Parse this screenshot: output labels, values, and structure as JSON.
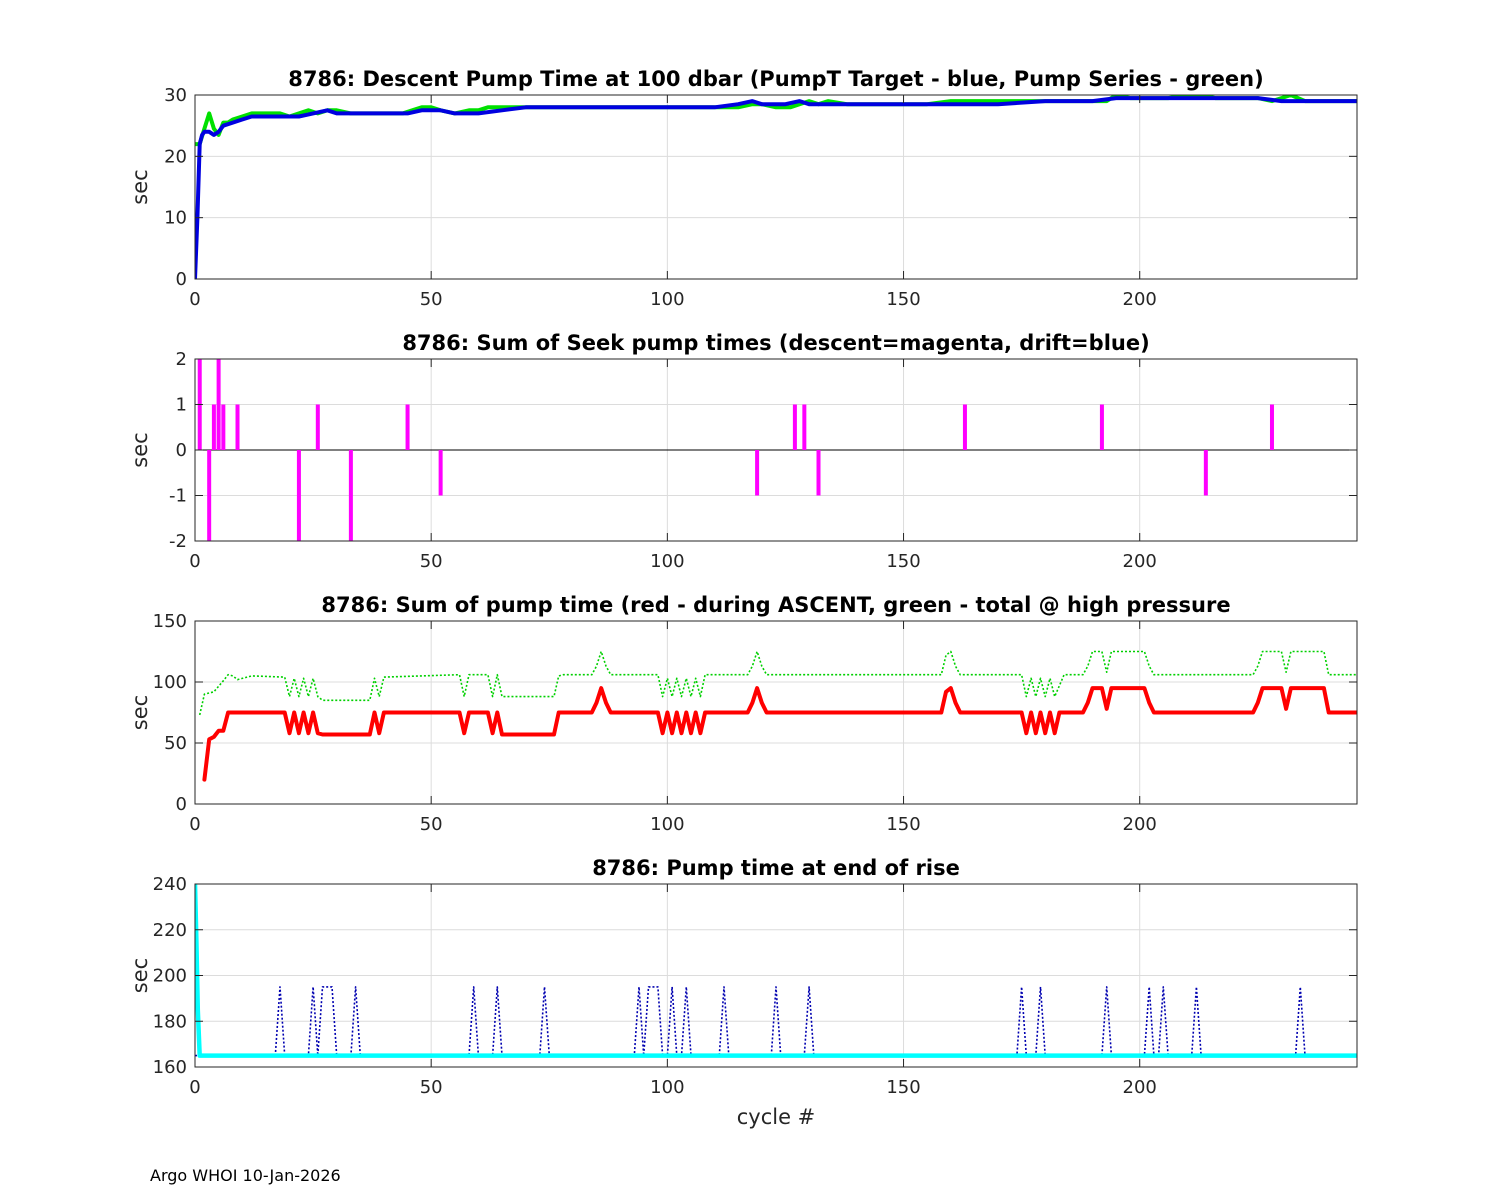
{
  "footer": "Argo WHOI 10-Jan-2026",
  "chart_data": [
    {
      "type": "line",
      "title": "8786: Descent Pump Time at 100 dbar (PumpT Target - blue, Pump Series - green)",
      "ylabel": "sec",
      "xlabel": "",
      "xlim": [
        0,
        246
      ],
      "ylim": [
        0,
        30
      ],
      "xticks": [
        0,
        50,
        100,
        150,
        200
      ],
      "yticks": [
        0,
        10,
        20,
        30
      ],
      "grid": true,
      "series": [
        {
          "name": "Pump Series",
          "color": "#00e000",
          "width": 4,
          "dash": "",
          "x": [
            0,
            1,
            2,
            3,
            4,
            5,
            6,
            7,
            8,
            10,
            12,
            15,
            18,
            20,
            22,
            24,
            26,
            28,
            30,
            33,
            36,
            40,
            44,
            46,
            48,
            50,
            52,
            55,
            58,
            60,
            62,
            65,
            70,
            75,
            80,
            85,
            90,
            95,
            100,
            105,
            110,
            115,
            118,
            120,
            123,
            126,
            128,
            130,
            132,
            134,
            138,
            142,
            146,
            150,
            155,
            160,
            165,
            170,
            175,
            180,
            185,
            190,
            193,
            195,
            198,
            200,
            203,
            206,
            210,
            213,
            216,
            220,
            225,
            228,
            230,
            232,
            235,
            240,
            246
          ],
          "y": [
            22,
            22,
            24.5,
            27,
            24.5,
            23.5,
            25.5,
            25.5,
            26,
            26.5,
            27,
            27,
            27,
            26.5,
            27,
            27.5,
            27,
            27.5,
            27.5,
            27,
            27,
            27,
            27,
            27.5,
            28,
            28,
            27.5,
            27,
            27.5,
            27.5,
            28,
            28,
            28,
            28,
            28,
            28,
            28,
            28,
            28,
            28,
            28,
            28,
            28.5,
            28.5,
            28,
            28,
            28.5,
            29,
            28.5,
            29,
            28.5,
            28.5,
            28.5,
            28.5,
            28.5,
            29,
            29,
            29,
            29,
            29,
            29,
            29,
            29,
            30,
            29.5,
            29.5,
            29.5,
            29.5,
            30,
            30,
            29.5,
            29.5,
            29.5,
            29,
            29.5,
            30,
            29,
            29,
            29
          ]
        },
        {
          "name": "PumpT Target",
          "color": "#0000e0",
          "width": 4,
          "dash": "",
          "x": [
            0,
            0.5,
            1,
            1.5,
            2,
            3,
            4,
            5,
            6,
            8,
            10,
            12,
            15,
            18,
            20,
            22,
            25,
            28,
            30,
            35,
            40,
            45,
            48,
            50,
            52,
            55,
            60,
            65,
            70,
            75,
            80,
            90,
            100,
            110,
            115,
            118,
            120,
            125,
            128,
            130,
            132,
            135,
            140,
            145,
            150,
            160,
            170,
            180,
            190,
            195,
            200,
            205,
            210,
            215,
            220,
            225,
            230,
            235,
            240,
            246
          ],
          "y": [
            0,
            10,
            22,
            23.5,
            24,
            24,
            23.5,
            24,
            25,
            25.5,
            26,
            26.5,
            26.5,
            26.5,
            26.5,
            26.5,
            27,
            27.5,
            27,
            27,
            27,
            27,
            27.5,
            27.5,
            27.5,
            27,
            27,
            27.5,
            28,
            28,
            28,
            28,
            28,
            28,
            28.5,
            29,
            28.5,
            28.5,
            29,
            28.5,
            28.5,
            28.5,
            28.5,
            28.5,
            28.5,
            28.5,
            28.5,
            29,
            29,
            29.5,
            29.5,
            29.5,
            29.5,
            29.5,
            29.5,
            29.5,
            29,
            29,
            29,
            29
          ]
        }
      ]
    },
    {
      "type": "bar",
      "title": "8786: Sum of Seek pump times (descent=magenta, drift=blue)",
      "ylabel": "sec",
      "xlabel": "",
      "xlim": [
        0,
        246
      ],
      "ylim": [
        -2,
        2
      ],
      "xticks": [
        0,
        50,
        100,
        150,
        200
      ],
      "yticks": [
        -2,
        -1,
        0,
        1,
        2
      ],
      "grid": true,
      "bar_color": "#ff00ff",
      "x": [
        1,
        3,
        4,
        5,
        6,
        9,
        22,
        26,
        33,
        45,
        52,
        119,
        127,
        129,
        132,
        163,
        192,
        214,
        228
      ],
      "values": [
        2,
        -2,
        1,
        2,
        1,
        1,
        -2,
        1,
        -2,
        1,
        -1,
        -1,
        1,
        1,
        -1,
        1,
        1,
        -1,
        1
      ]
    },
    {
      "type": "line",
      "title": "8786: Sum of pump time (red - during ASCENT, green - total @ high pressure",
      "ylabel": "sec",
      "xlabel": "",
      "xlim": [
        0,
        246
      ],
      "ylim": [
        0,
        150
      ],
      "xticks": [
        0,
        50,
        100,
        150,
        200
      ],
      "yticks": [
        0,
        50,
        100,
        150
      ],
      "grid": true,
      "series": [
        {
          "name": "total @ high pressure",
          "color": "#00d000",
          "width": 1.6,
          "dash": "2,2",
          "x": [
            1,
            2,
            4,
            6,
            7,
            8,
            9,
            12,
            19,
            20,
            21,
            22,
            23,
            24,
            25,
            26,
            27,
            33,
            37,
            38,
            39,
            40,
            48,
            56,
            57,
            58,
            59,
            62,
            63,
            64,
            65,
            70,
            76,
            77,
            78,
            84,
            85,
            86,
            87,
            88,
            98,
            99,
            100,
            101,
            102,
            103,
            104,
            105,
            106,
            107,
            108,
            117,
            118,
            119,
            120,
            121,
            158,
            159,
            160,
            161,
            162,
            175,
            176,
            177,
            178,
            179,
            180,
            181,
            182,
            184,
            188,
            189,
            190,
            191,
            192,
            193,
            194,
            195,
            201,
            202,
            203,
            224,
            225,
            226,
            227,
            228,
            229,
            230,
            231,
            232,
            233,
            238,
            239,
            240,
            246
          ],
          "y": [
            73,
            90,
            92,
            101,
            106,
            105,
            102,
            105,
            104,
            88,
            103,
            88,
            103,
            88,
            103,
            88,
            85,
            85,
            85,
            103,
            88,
            104,
            105,
            106,
            88,
            106,
            106,
            106,
            88,
            106,
            88,
            88,
            88,
            105,
            106,
            106,
            113,
            125,
            113,
            106,
            106,
            88,
            103,
            88,
            103,
            88,
            103,
            88,
            103,
            88,
            106,
            106,
            113,
            125,
            113,
            106,
            106,
            122,
            125,
            113,
            106,
            106,
            88,
            103,
            88,
            103,
            88,
            103,
            88,
            106,
            106,
            113,
            125,
            125,
            125,
            108,
            125,
            125,
            125,
            113,
            106,
            106,
            113,
            125,
            125,
            125,
            125,
            125,
            108,
            125,
            125,
            125,
            125,
            106,
            106
          ]
        },
        {
          "name": "during ASCENT",
          "color": "#ff0000",
          "width": 4,
          "dash": "",
          "x": [
            2,
            3,
            4,
            5,
            6,
            7,
            19,
            20,
            21,
            22,
            23,
            24,
            25,
            26,
            27,
            37,
            38,
            39,
            40,
            56,
            57,
            58,
            62,
            63,
            64,
            65,
            76,
            77,
            78,
            84,
            85,
            86,
            87,
            88,
            98,
            99,
            100,
            101,
            102,
            103,
            104,
            105,
            106,
            107,
            108,
            117,
            118,
            119,
            120,
            121,
            158,
            159,
            160,
            161,
            162,
            175,
            176,
            177,
            178,
            179,
            180,
            181,
            182,
            183,
            188,
            189,
            190,
            191,
            192,
            193,
            194,
            195,
            201,
            202,
            203,
            224,
            225,
            226,
            227,
            228,
            229,
            230,
            231,
            232,
            233,
            238,
            239,
            240,
            246
          ],
          "y": [
            20,
            53,
            55,
            60,
            60,
            75,
            75,
            58,
            75,
            58,
            75,
            58,
            75,
            58,
            57,
            57,
            75,
            58,
            75,
            75,
            58,
            75,
            75,
            58,
            75,
            57,
            57,
            75,
            75,
            75,
            83,
            95,
            83,
            75,
            75,
            58,
            75,
            58,
            75,
            58,
            75,
            58,
            75,
            58,
            75,
            75,
            83,
            95,
            83,
            75,
            75,
            92,
            95,
            83,
            75,
            75,
            58,
            75,
            58,
            75,
            58,
            75,
            58,
            75,
            75,
            83,
            95,
            95,
            95,
            78,
            95,
            95,
            95,
            83,
            75,
            75,
            83,
            95,
            95,
            95,
            95,
            95,
            78,
            95,
            95,
            95,
            95,
            75,
            75
          ]
        }
      ]
    },
    {
      "type": "line",
      "title": "8786: Pump time at end of rise",
      "ylabel": "sec",
      "xlabel": "cycle #",
      "xlim": [
        0,
        246
      ],
      "ylim": [
        160,
        240
      ],
      "xticks": [
        0,
        50,
        100,
        150,
        200
      ],
      "yticks": [
        160,
        180,
        200,
        220,
        240
      ],
      "grid": true,
      "series": [
        {
          "name": "end of rise spikes",
          "color": "#0000b0",
          "width": 1.6,
          "dash": "2,2",
          "x": [
            0,
            17,
            18,
            19,
            24,
            25,
            26,
            27,
            28,
            29,
            30,
            33,
            34,
            35,
            58,
            59,
            60,
            63,
            64,
            65,
            73,
            74,
            75,
            93,
            94,
            95,
            96,
            97,
            98,
            99,
            100,
            101,
            102,
            103,
            104,
            105,
            106,
            111,
            112,
            113,
            122,
            123,
            124,
            129,
            130,
            131,
            174,
            175,
            176,
            178,
            179,
            180,
            192,
            193,
            194,
            201,
            202,
            203,
            204,
            205,
            206,
            211,
            212,
            213,
            233,
            234,
            235,
            246
          ],
          "y": [
            165,
            165,
            195,
            165,
            165,
            195,
            165,
            195,
            195,
            195,
            165,
            165,
            195,
            165,
            165,
            195,
            165,
            165,
            195,
            165,
            165,
            195,
            165,
            165,
            195,
            165,
            195,
            195,
            195,
            165,
            165,
            195,
            165,
            165,
            195,
            165,
            165,
            165,
            195,
            165,
            165,
            195,
            165,
            165,
            195,
            165,
            165,
            195,
            165,
            165,
            195,
            165,
            165,
            195,
            165,
            165,
            195,
            165,
            165,
            195,
            165,
            165,
            195,
            165,
            165,
            195,
            165,
            165
          ]
        },
        {
          "name": "end of rise",
          "color": "#00ffff",
          "width": 4.5,
          "dash": "",
          "x": [
            0,
            0.3,
            0.6,
            1,
            2,
            246
          ],
          "y": [
            240,
            215,
            185,
            165,
            165,
            165
          ]
        }
      ]
    }
  ]
}
